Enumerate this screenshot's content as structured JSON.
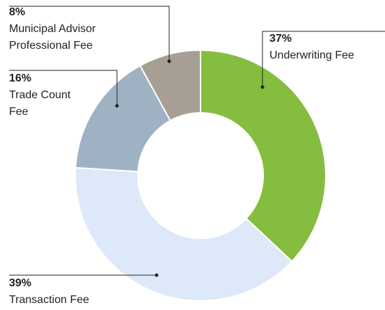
{
  "chart_data": {
    "type": "donut",
    "categories": [
      "Underwriting Fee",
      "Transaction Fee",
      "Trade Count Fee",
      "Municipal Advisor Professional Fee"
    ],
    "values": [
      37,
      39,
      16,
      8
    ],
    "value_labels": [
      "37%",
      "39%",
      "16%",
      "8%"
    ],
    "colors": [
      "#84bd3f",
      "#dde9f8",
      "#9fb2c4",
      "#a89f94"
    ]
  }
}
